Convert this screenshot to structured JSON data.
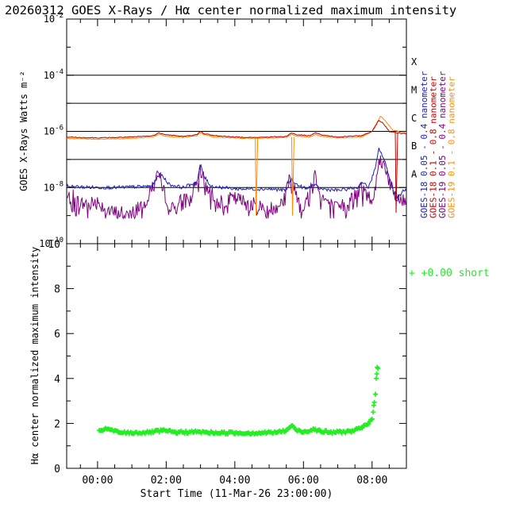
{
  "title": "20260312 GOES X-Rays / Hα center normalized maximum intensity",
  "top_panel": {
    "ylabel": "GOES X-Rays Watts m⁻²",
    "y_ticks": [
      {
        "base": "10",
        "exp": "-2"
      },
      {
        "base": "10",
        "exp": "-4"
      },
      {
        "base": "10",
        "exp": "-6"
      },
      {
        "base": "10",
        "exp": "-8"
      },
      {
        "base": "10",
        "exp": "-10"
      }
    ],
    "flare_classes": [
      "X",
      "M",
      "C",
      "B",
      "A"
    ],
    "legend": [
      {
        "label": "GOES-18 0.05 - 0.4 nanometer",
        "color": "#2020b0"
      },
      {
        "label": "GOES-18 0.1 - 0.8 nanometer",
        "color": "#c00000"
      },
      {
        "label": "GOES-19 0.05 - 0.4 nanometer",
        "color": "#800080"
      },
      {
        "label": "GOES-19 0.1 - 0.8 nanometer",
        "color": "#ff8c00"
      }
    ]
  },
  "bottom_panel": {
    "ylabel": "Hα center normalized maximum intensity",
    "y_ticks": [
      "0",
      "2",
      "4",
      "6",
      "8",
      "10"
    ],
    "x_ticks": [
      "00:00",
      "02:00",
      "04:00",
      "06:00",
      "08:00"
    ],
    "xlabel": "Start Time (11-Mar-26 23:00:00)",
    "legend_label": "+  +0.00 short",
    "marker_color": "#22ee22"
  },
  "chart_data": [
    {
      "type": "line",
      "title": "GOES X-Rays",
      "xlabel": "Start Time (11-Mar-26 23:00:00)",
      "ylabel": "GOES X-Rays Watts m-2",
      "yscale": "log",
      "ylim_exp": [
        -10,
        -2
      ],
      "xlim_hours": [
        -0.9,
        9.0
      ],
      "flare_levels": {
        "A": -8,
        "B": -7,
        "C": -6,
        "M": -5,
        "X": -4
      },
      "series": [
        {
          "name": "GOES-18 0.05 - 0.4 nanometer",
          "color": "#2020b0",
          "role": "g18s",
          "points": [
            [
              -0.9,
              -7.95
            ],
            [
              -0.5,
              -7.98
            ],
            [
              0,
              -8.0
            ],
            [
              0.5,
              -8.0
            ],
            [
              1,
              -7.98
            ],
            [
              1.6,
              -7.95
            ],
            [
              1.8,
              -7.5
            ],
            [
              1.9,
              -7.6
            ],
            [
              2.1,
              -7.9
            ],
            [
              2.5,
              -8.0
            ],
            [
              2.9,
              -7.8
            ],
            [
              3.0,
              -7.2
            ],
            [
              3.1,
              -7.6
            ],
            [
              3.3,
              -7.95
            ],
            [
              4.0,
              -8.05
            ],
            [
              4.6,
              -8.05
            ],
            [
              5.0,
              -8.05
            ],
            [
              5.5,
              -8.1
            ],
            [
              5.65,
              -7.7
            ],
            [
              5.8,
              -7.9
            ],
            [
              6.1,
              -8.05
            ],
            [
              6.3,
              -7.9
            ],
            [
              6.5,
              -8.05
            ],
            [
              7.0,
              -8.1
            ],
            [
              7.6,
              -8.0
            ],
            [
              7.7,
              -7.8
            ],
            [
              7.9,
              -8.0
            ],
            [
              8.1,
              -7.3
            ],
            [
              8.2,
              -6.6
            ],
            [
              8.35,
              -7.0
            ],
            [
              8.5,
              -7.6
            ],
            [
              8.7,
              -8.5
            ],
            [
              8.9,
              -8.1
            ]
          ]
        },
        {
          "name": "GOES-18 0.1 - 0.8 nanometer",
          "color": "#c00000",
          "role": "g18l",
          "points": [
            [
              -0.9,
              -6.2
            ],
            [
              -0.5,
              -6.22
            ],
            [
              0,
              -6.23
            ],
            [
              0.5,
              -6.22
            ],
            [
              1.0,
              -6.2
            ],
            [
              1.6,
              -6.16
            ],
            [
              1.8,
              -6.05
            ],
            [
              2.0,
              -6.12
            ],
            [
              2.5,
              -6.18
            ],
            [
              2.9,
              -6.12
            ],
            [
              3.0,
              -6.0
            ],
            [
              3.1,
              -6.08
            ],
            [
              3.4,
              -6.15
            ],
            [
              4.0,
              -6.2
            ],
            [
              4.6,
              -6.22
            ],
            [
              5.0,
              -6.2
            ],
            [
              5.5,
              -6.18
            ],
            [
              5.65,
              -6.05
            ],
            [
              5.8,
              -6.12
            ],
            [
              6.2,
              -6.15
            ],
            [
              6.35,
              -6.05
            ],
            [
              6.5,
              -6.12
            ],
            [
              7.0,
              -6.2
            ],
            [
              7.7,
              -6.15
            ],
            [
              8.0,
              -6.0
            ],
            [
              8.2,
              -5.6
            ],
            [
              8.35,
              -5.75
            ],
            [
              8.5,
              -6.0
            ],
            [
              8.7,
              -6.05
            ],
            [
              8.9,
              -6.08
            ]
          ]
        },
        {
          "name": "GOES-19 0.05 - 0.4 nanometer",
          "color": "#800080",
          "role": "g19s",
          "points": [
            [
              -0.9,
              -8.4
            ],
            [
              -0.7,
              -8.3
            ],
            [
              -0.5,
              -8.6
            ],
            [
              0,
              -8.5
            ],
            [
              0.4,
              -8.9
            ],
            [
              1.0,
              -8.9
            ],
            [
              1.5,
              -8.3
            ],
            [
              1.75,
              -7.4
            ],
            [
              1.9,
              -8.1
            ],
            [
              2.2,
              -8.8
            ],
            [
              2.5,
              -8.4
            ],
            [
              2.9,
              -8.0
            ],
            [
              3.0,
              -7.4
            ],
            [
              3.15,
              -7.9
            ],
            [
              3.5,
              -8.5
            ],
            [
              4.0,
              -8.4
            ],
            [
              4.5,
              -8.6
            ],
            [
              5.0,
              -8.8
            ],
            [
              5.4,
              -8.5
            ],
            [
              5.6,
              -7.7
            ],
            [
              5.8,
              -8.2
            ],
            [
              6.0,
              -8.8
            ],
            [
              6.25,
              -7.9
            ],
            [
              6.35,
              -7.5
            ],
            [
              6.5,
              -8.3
            ],
            [
              7.0,
              -8.8
            ],
            [
              7.6,
              -8.2
            ],
            [
              7.7,
              -8.0
            ],
            [
              8.0,
              -8.5
            ],
            [
              8.1,
              -7.5
            ],
            [
              8.25,
              -7.0
            ],
            [
              8.4,
              -7.3
            ],
            [
              8.6,
              -8.2
            ],
            [
              8.9,
              -8.5
            ]
          ]
        },
        {
          "name": "GOES-19 0.1 - 0.8 nanometer",
          "color": "#ff8c00",
          "role": "g19l",
          "points": [
            [
              -0.9,
              -6.25
            ],
            [
              -0.5,
              -6.27
            ],
            [
              0,
              -6.28
            ],
            [
              0.5,
              -6.27
            ],
            [
              1.0,
              -6.25
            ],
            [
              1.6,
              -6.2
            ],
            [
              1.8,
              -6.1
            ],
            [
              2.0,
              -6.18
            ],
            [
              2.5,
              -6.22
            ],
            [
              2.9,
              -6.15
            ],
            [
              3.0,
              -6.05
            ],
            [
              3.1,
              -6.12
            ],
            [
              3.4,
              -6.2
            ],
            [
              4.0,
              -6.24
            ],
            [
              4.6,
              -6.25
            ],
            [
              5.0,
              -6.24
            ],
            [
              5.5,
              -6.22
            ],
            [
              5.65,
              -6.1
            ],
            [
              5.8,
              -6.17
            ],
            [
              6.2,
              -6.2
            ],
            [
              6.35,
              -6.1
            ],
            [
              6.5,
              -6.17
            ],
            [
              7.0,
              -6.24
            ],
            [
              7.7,
              -6.2
            ],
            [
              8.0,
              -6.0
            ],
            [
              8.25,
              -5.45
            ],
            [
              8.4,
              -5.65
            ],
            [
              8.6,
              -5.95
            ],
            [
              8.9,
              -6.05
            ]
          ]
        }
      ],
      "dropouts": [
        {
          "series": "GOES-19 0.1 - 0.8 nanometer",
          "x": 4.62,
          "y_from": -6.25,
          "y_to": -9.0
        },
        {
          "series": "GOES-19 0.1 - 0.8 nanometer",
          "x": 5.68,
          "y_from": -6.2,
          "y_to": -9.0
        },
        {
          "series": "GOES-18 0.1 - 0.8 nanometer",
          "x": 8.7,
          "y_from": -6.05,
          "y_to": -8.9
        }
      ]
    },
    {
      "type": "scatter",
      "title": "Hα center normalized maximum intensity",
      "xlabel": "Start Time (11-Mar-26 23:00:00)",
      "ylabel": "Hα center normalized maximum intensity",
      "ylim": [
        0,
        10
      ],
      "xlim_hours": [
        -0.9,
        9.0
      ],
      "series": [
        {
          "name": "+0.00 short",
          "color": "#22ee22",
          "points": [
            [
              0.1,
              1.7
            ],
            [
              0.3,
              1.75
            ],
            [
              0.6,
              1.6
            ],
            [
              1.0,
              1.58
            ],
            [
              1.5,
              1.6
            ],
            [
              1.9,
              1.68
            ],
            [
              2.3,
              1.6
            ],
            [
              2.8,
              1.62
            ],
            [
              3.2,
              1.6
            ],
            [
              3.6,
              1.58
            ],
            [
              4.0,
              1.58
            ],
            [
              4.4,
              1.57
            ],
            [
              4.8,
              1.58
            ],
            [
              5.2,
              1.6
            ],
            [
              5.5,
              1.68
            ],
            [
              5.65,
              1.9
            ],
            [
              5.8,
              1.7
            ],
            [
              6.0,
              1.62
            ],
            [
              6.3,
              1.75
            ],
            [
              6.5,
              1.65
            ],
            [
              6.8,
              1.6
            ],
            [
              7.1,
              1.62
            ],
            [
              7.4,
              1.65
            ],
            [
              7.7,
              1.8
            ],
            [
              7.9,
              2.0
            ],
            [
              8.0,
              2.2
            ],
            [
              8.05,
              2.8
            ],
            [
              8.1,
              3.3
            ],
            [
              8.12,
              4.0
            ],
            [
              8.15,
              4.5
            ]
          ]
        }
      ]
    }
  ]
}
